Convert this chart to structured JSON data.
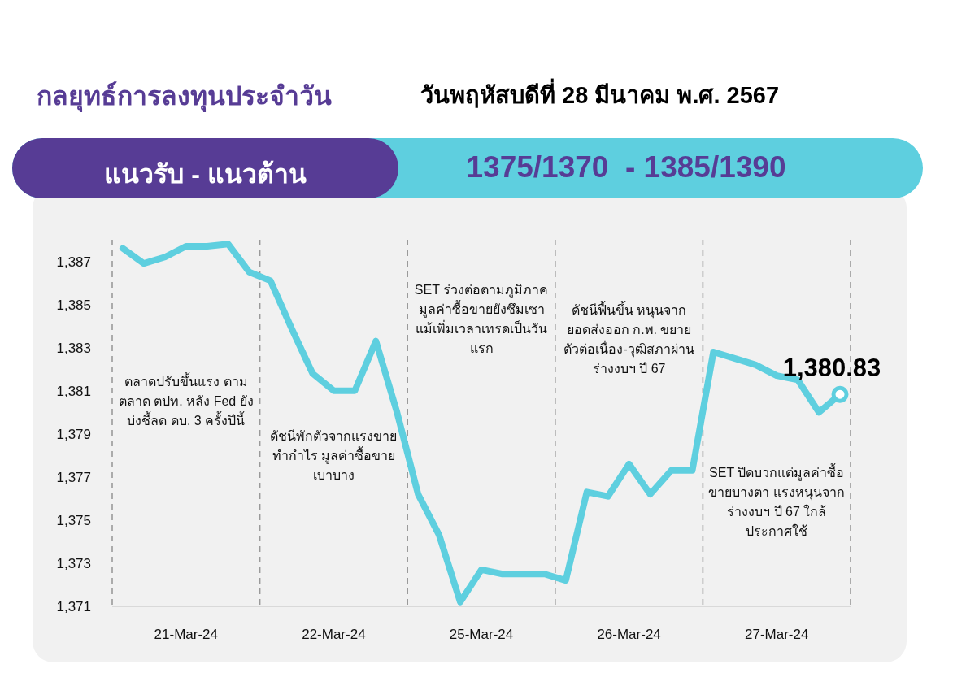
{
  "chart_data": {
    "type": "line",
    "title": "กลยุทธ์การลงทุนประจำวัน",
    "subtitle": "วันพฤหัสบดีที่ 28 มีนาคม พ.ศ. 2567",
    "annotations": [
      "แนวรับ - แนวต้าน",
      "1375/1370  - 1385/1390",
      "ตลาดปรับขึ้นแรง ตามตลาด ตปท. หลัง Fed ยังบ่งชี้ลด ดบ. 3 ครั้งปีนี้",
      "ดัชนีพักตัวจากแรงขายทำกำไร มูลค่าซื้อขายเบาบาง",
      "SET ร่วงต่อตามภูมิภาค มูลค่าซื้อขายยังซึมเซาแม้เพิ่มเวลาเทรดเป็นวันแรก",
      "ดัชนีฟื้นขึ้น หนุนจากยอดส่งออก ก.พ. ขยายตัวต่อเนื่อง-วุฒิสภาผ่านร่างงบฯ ปี 67",
      "SET ปิดบวกแต่มูลค่าซื้อขายบางตา แรงหนุนจากร่างงบฯ ปี 67 ใกล้ประกาศใช้",
      {
        "text": "1,380.83",
        "y": 1380.83
      }
    ],
    "categories": [
      null,
      null,
      null,
      "21-Mar-24",
      null,
      null,
      null,
      null,
      null,
      null,
      "22-Mar-24",
      null,
      null,
      null,
      null,
      null,
      null,
      "25-Mar-24",
      null,
      null,
      null,
      null,
      null,
      null,
      "26-Mar-24",
      null,
      null,
      null,
      null,
      null,
      null,
      "27-Mar-24",
      null,
      null,
      null
    ],
    "values": [
      1387.6,
      1386.9,
      1387.2,
      1387.7,
      1387.7,
      1387.8,
      1386.5,
      1386.1,
      1383.9,
      1381.8,
      1381.0,
      1381.0,
      1383.3,
      1380.0,
      1376.2,
      1374.3,
      1371.2,
      1372.7,
      1372.5,
      1372.5,
      1372.5,
      1372.2,
      1376.3,
      1376.1,
      1377.6,
      1376.2,
      1377.3,
      1377.3,
      1382.8,
      1382.5,
      1382.2,
      1381.7,
      1381.5,
      1380.0,
      1380.83
    ],
    "color": "#5ecfdf",
    "ylim": [
      1371,
      1388
    ],
    "yticks": [
      {
        "value": 1371,
        "label": "1,371"
      },
      {
        "value": 1373,
        "label": "1,373"
      },
      {
        "value": 1375,
        "label": "1,375"
      },
      {
        "value": 1377,
        "label": "1,377"
      },
      {
        "value": 1379,
        "label": "1,379"
      },
      {
        "value": 1381,
        "label": "1,381"
      },
      {
        "value": 1383,
        "label": "1,383"
      },
      {
        "value": 1385,
        "label": "1,385"
      },
      {
        "value": 1387,
        "label": "1,387"
      }
    ],
    "grid": false,
    "marker": "none",
    "line_style": "solid"
  }
}
